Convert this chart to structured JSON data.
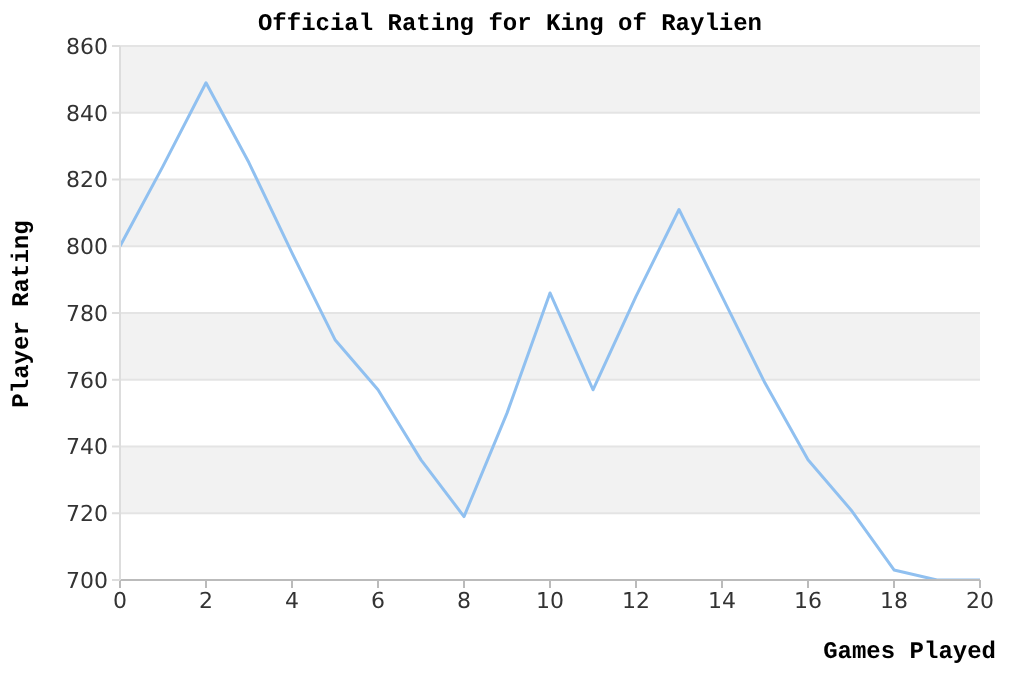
{
  "chart_data": {
    "type": "line",
    "title": "Official Rating for King of Raylien",
    "xlabel": "Games Played",
    "ylabel": "Player Rating",
    "x": [
      0,
      1,
      2,
      3,
      4,
      5,
      6,
      7,
      8,
      9,
      10,
      11,
      12,
      13,
      14,
      15,
      16,
      17,
      18,
      19,
      20
    ],
    "series": [
      {
        "color": "#90c0f0",
        "values": [
          800,
          824,
          849,
          825,
          798,
          772,
          757,
          736,
          719,
          750,
          786,
          757,
          785,
          811,
          785,
          759,
          736,
          721,
          703,
          700,
          700
        ]
      }
    ],
    "xlim": [
      0,
      20
    ],
    "xticks": [
      0,
      2,
      4,
      6,
      8,
      10,
      12,
      14,
      16,
      18,
      20
    ],
    "ylim": [
      700,
      860
    ],
    "yticks": [
      700,
      720,
      740,
      760,
      780,
      800,
      820,
      840,
      860
    ],
    "grid": "y",
    "legend": false,
    "marker": "none",
    "line_style": "solid"
  }
}
